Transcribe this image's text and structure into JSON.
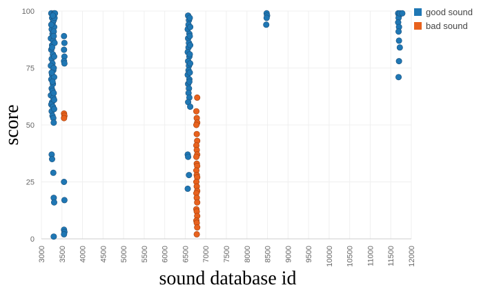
{
  "chart_data": {
    "type": "scatter",
    "xlabel": "sound database id",
    "ylabel": "score",
    "xlim": [
      3000,
      12000
    ],
    "ylim": [
      0,
      100
    ],
    "xticks": [
      3000,
      3500,
      4000,
      4500,
      5000,
      5500,
      6000,
      6500,
      7000,
      7500,
      8000,
      8500,
      9000,
      9500,
      10000,
      10500,
      11000,
      11500,
      12000
    ],
    "yticks": [
      0,
      25,
      50,
      75,
      100
    ],
    "grid": true,
    "legend": "top-right",
    "series": [
      {
        "name": "good sound",
        "color": "#1f77b4",
        "points": [
          [
            3240,
            99
          ],
          [
            3260,
            97
          ],
          [
            3280,
            95
          ],
          [
            3250,
            92
          ],
          [
            3270,
            90
          ],
          [
            3230,
            88
          ],
          [
            3290,
            87
          ],
          [
            3260,
            85
          ],
          [
            3240,
            83
          ],
          [
            3280,
            81
          ],
          [
            3250,
            79
          ],
          [
            3270,
            77
          ],
          [
            3230,
            76
          ],
          [
            3290,
            74
          ],
          [
            3260,
            72
          ],
          [
            3240,
            70
          ],
          [
            3280,
            68
          ],
          [
            3250,
            66
          ],
          [
            3270,
            65
          ],
          [
            3230,
            63
          ],
          [
            3290,
            62
          ],
          [
            3260,
            60
          ],
          [
            3240,
            59
          ],
          [
            3280,
            58
          ],
          [
            3250,
            56
          ],
          [
            3270,
            54
          ],
          [
            3290,
            53
          ],
          [
            3300,
            51
          ],
          [
            3310,
            99
          ],
          [
            3300,
            96
          ],
          [
            3310,
            93
          ],
          [
            3300,
            91
          ],
          [
            3320,
            86
          ],
          [
            3310,
            80
          ],
          [
            3300,
            75
          ],
          [
            3310,
            71
          ],
          [
            3300,
            64
          ],
          [
            3310,
            61
          ],
          [
            3320,
            97
          ],
          [
            3330,
            99
          ],
          [
            3300,
            89
          ],
          [
            3280,
            98
          ],
          [
            3240,
            94
          ],
          [
            3260,
            84
          ],
          [
            3250,
            73
          ],
          [
            3270,
            69
          ],
          [
            3310,
            57
          ],
          [
            3250,
            37
          ],
          [
            3260,
            35
          ],
          [
            3290,
            29
          ],
          [
            3300,
            18
          ],
          [
            3310,
            16
          ],
          [
            3300,
            1
          ],
          [
            3550,
            89
          ],
          [
            3560,
            86
          ],
          [
            3550,
            83
          ],
          [
            3560,
            80
          ],
          [
            3550,
            78
          ],
          [
            3560,
            77
          ],
          [
            3550,
            25
          ],
          [
            3560,
            17
          ],
          [
            3550,
            4
          ],
          [
            3560,
            3
          ],
          [
            3550,
            2
          ],
          [
            6570,
            98
          ],
          [
            6590,
            96
          ],
          [
            6580,
            94
          ],
          [
            6560,
            92
          ],
          [
            6600,
            90
          ],
          [
            6570,
            88
          ],
          [
            6590,
            86
          ],
          [
            6580,
            84
          ],
          [
            6560,
            82
          ],
          [
            6600,
            80
          ],
          [
            6570,
            78
          ],
          [
            6590,
            76
          ],
          [
            6580,
            74
          ],
          [
            6560,
            72
          ],
          [
            6600,
            70
          ],
          [
            6570,
            68
          ],
          [
            6590,
            66
          ],
          [
            6580,
            64
          ],
          [
            6600,
            62
          ],
          [
            6570,
            60
          ],
          [
            6620,
            58
          ],
          [
            6610,
            97
          ],
          [
            6620,
            93
          ],
          [
            6610,
            89
          ],
          [
            6620,
            85
          ],
          [
            6610,
            81
          ],
          [
            6620,
            77
          ],
          [
            6610,
            73
          ],
          [
            6600,
            69
          ],
          [
            6560,
            37
          ],
          [
            6570,
            36
          ],
          [
            6590,
            28
          ],
          [
            6560,
            22
          ],
          [
            8480,
            99
          ],
          [
            8490,
            98
          ],
          [
            8480,
            97
          ],
          [
            8470,
            94
          ],
          [
            11680,
            99
          ],
          [
            11700,
            98
          ],
          [
            11690,
            97
          ],
          [
            11720,
            99
          ],
          [
            11780,
            99
          ],
          [
            11680,
            95
          ],
          [
            11700,
            93
          ],
          [
            11690,
            91
          ],
          [
            11700,
            87
          ],
          [
            11720,
            84
          ],
          [
            11700,
            78
          ],
          [
            11690,
            71
          ]
        ]
      },
      {
        "name": "bad sound",
        "color": "#e8621e",
        "points": [
          [
            3550,
            55
          ],
          [
            3560,
            54
          ],
          [
            3550,
            53
          ],
          [
            6790,
            62
          ],
          [
            6770,
            56
          ],
          [
            6780,
            53
          ],
          [
            6790,
            51
          ],
          [
            6770,
            50
          ],
          [
            6780,
            46
          ],
          [
            6790,
            43
          ],
          [
            6770,
            41
          ],
          [
            6780,
            39
          ],
          [
            6790,
            37
          ],
          [
            6770,
            36
          ],
          [
            6780,
            33
          ],
          [
            6790,
            32
          ],
          [
            6770,
            30
          ],
          [
            6780,
            28
          ],
          [
            6790,
            27
          ],
          [
            6770,
            25
          ],
          [
            6780,
            23
          ],
          [
            6790,
            21
          ],
          [
            6770,
            20
          ],
          [
            6780,
            18
          ],
          [
            6790,
            16
          ],
          [
            6770,
            13
          ],
          [
            6780,
            12
          ],
          [
            6790,
            10
          ],
          [
            6770,
            8
          ],
          [
            6780,
            7
          ],
          [
            6790,
            5
          ],
          [
            6780,
            2
          ]
        ]
      }
    ]
  }
}
